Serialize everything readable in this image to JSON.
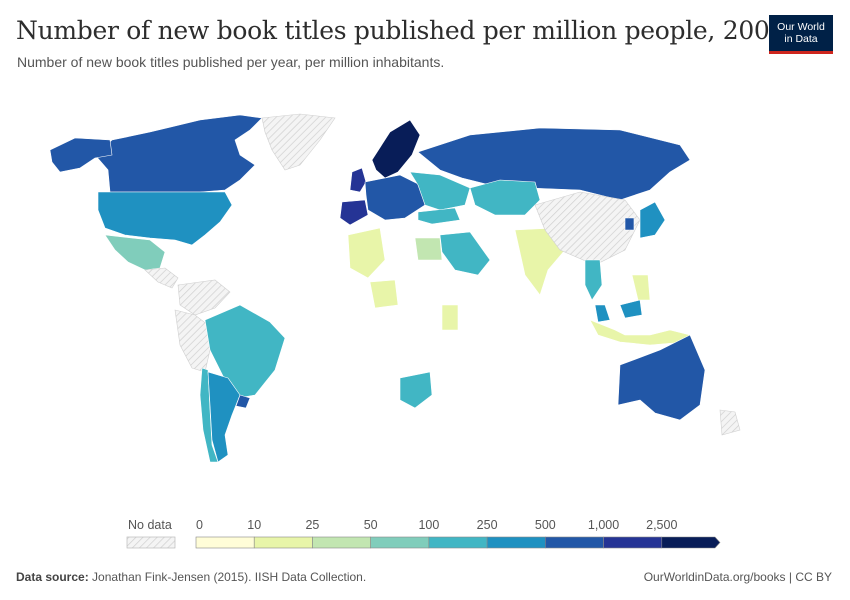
{
  "title": "Number of new book titles published per million people, 2009",
  "subtitle": "Number of new book titles published per year, per million inhabitants.",
  "logo": {
    "line1": "Our World",
    "line2": "in Data",
    "bg": "#002147",
    "accent": "#ce261e"
  },
  "legend": {
    "no_data_label": "No data",
    "ticks": [
      "0",
      "10",
      "25",
      "50",
      "100",
      "250",
      "500",
      "1,000",
      "2,500"
    ],
    "colors": [
      "#fffdd8",
      "#e8f5a9",
      "#c2e6b1",
      "#80cdbb",
      "#41b6c4",
      "#1f91c1",
      "#2257a7",
      "#253495",
      "#081d58"
    ]
  },
  "map_regions": [
    {
      "name": "Canada",
      "color": "#2257a7"
    },
    {
      "name": "Alaska",
      "color": "#2257a7"
    },
    {
      "name": "Greenland",
      "color": "nodata"
    },
    {
      "name": "United States",
      "color": "#1f91c1"
    },
    {
      "name": "Mexico",
      "color": "#80cdbb"
    },
    {
      "name": "Central America",
      "color": "nodata"
    },
    {
      "name": "Colombia/Venezuela",
      "color": "nodata"
    },
    {
      "name": "Peru/Bolivia",
      "color": "nodata"
    },
    {
      "name": "Brazil",
      "color": "#41b6c4"
    },
    {
      "name": "Chile",
      "color": "#41b6c4"
    },
    {
      "name": "Argentina",
      "color": "#1f91c1"
    },
    {
      "name": "Uruguay",
      "color": "#2257a7"
    },
    {
      "name": "Spain",
      "color": "#253495"
    },
    {
      "name": "United Kingdom",
      "color": "#253495"
    },
    {
      "name": "Scandinavia",
      "color": "#081d58"
    },
    {
      "name": "Central Europe",
      "color": "#2257a7"
    },
    {
      "name": "Eastern Europe",
      "color": "#41b6c4"
    },
    {
      "name": "Russia",
      "color": "#2257a7"
    },
    {
      "name": "Kazakhstan",
      "color": "#41b6c4"
    },
    {
      "name": "Turkey",
      "color": "#41b6c4"
    },
    {
      "name": "Saudi Arabia",
      "color": "#41b6c4"
    },
    {
      "name": "Algeria",
      "color": "#e8f5a9"
    },
    {
      "name": "Egypt",
      "color": "#c2e6b1"
    },
    {
      "name": "Nigeria",
      "color": "#e8f5a9"
    },
    {
      "name": "Kenya",
      "color": "#e8f5a9"
    },
    {
      "name": "South Africa",
      "color": "#41b6c4"
    },
    {
      "name": "India",
      "color": "#e8f5a9"
    },
    {
      "name": "China",
      "color": "nodata"
    },
    {
      "name": "Japan",
      "color": "#1f91c1"
    },
    {
      "name": "South Korea",
      "color": "#2257a7"
    },
    {
      "name": "Thailand",
      "color": "#41b6c4"
    },
    {
      "name": "Malaysia",
      "color": "#1f91c1"
    },
    {
      "name": "Indonesia",
      "color": "#e8f5a9"
    },
    {
      "name": "Philippines",
      "color": "#e8f5a9"
    },
    {
      "name": "Australia",
      "color": "#2257a7"
    },
    {
      "name": "New Zealand",
      "color": "nodata"
    }
  ],
  "footer": {
    "source_label": "Data source:",
    "source_text": "Jonathan Fink-Jensen (2015). IISH Data Collection.",
    "right_text": "OurWorldinData.org/books | CC BY"
  }
}
